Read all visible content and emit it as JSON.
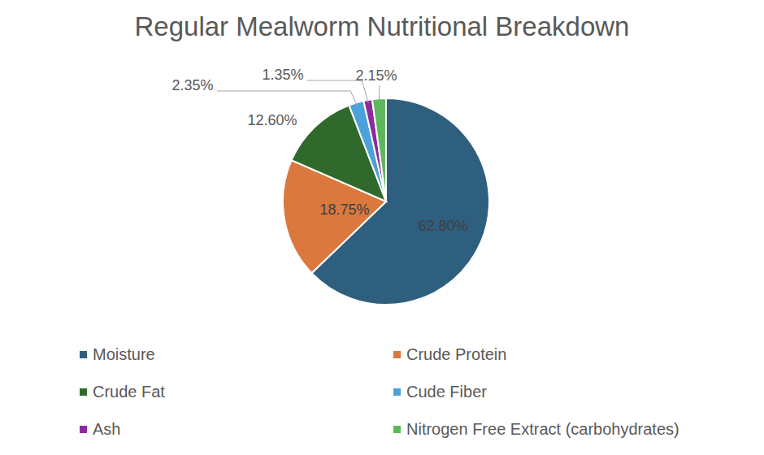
{
  "chart_data": {
    "type": "pie",
    "title": "Regular Mealworm Nutritional Breakdown",
    "categories": [
      "Moisture",
      "Crude Protein",
      "Crude Fat",
      "Cude Fiber",
      "Ash",
      "Nitrogen Free Extract (carbohydrates)"
    ],
    "values": [
      62.8,
      18.75,
      12.6,
      2.35,
      1.35,
      2.15
    ],
    "value_labels": [
      "62.80%",
      "18.75%",
      "12.60%",
      "2.35%",
      "1.35%",
      "2.15%"
    ],
    "colors": [
      "#2E5F7F",
      "#DA783E",
      "#2F6A2C",
      "#4BA2D8",
      "#8C2A9E",
      "#5DB85B"
    ],
    "data_labels": true,
    "legend": "bottom"
  }
}
